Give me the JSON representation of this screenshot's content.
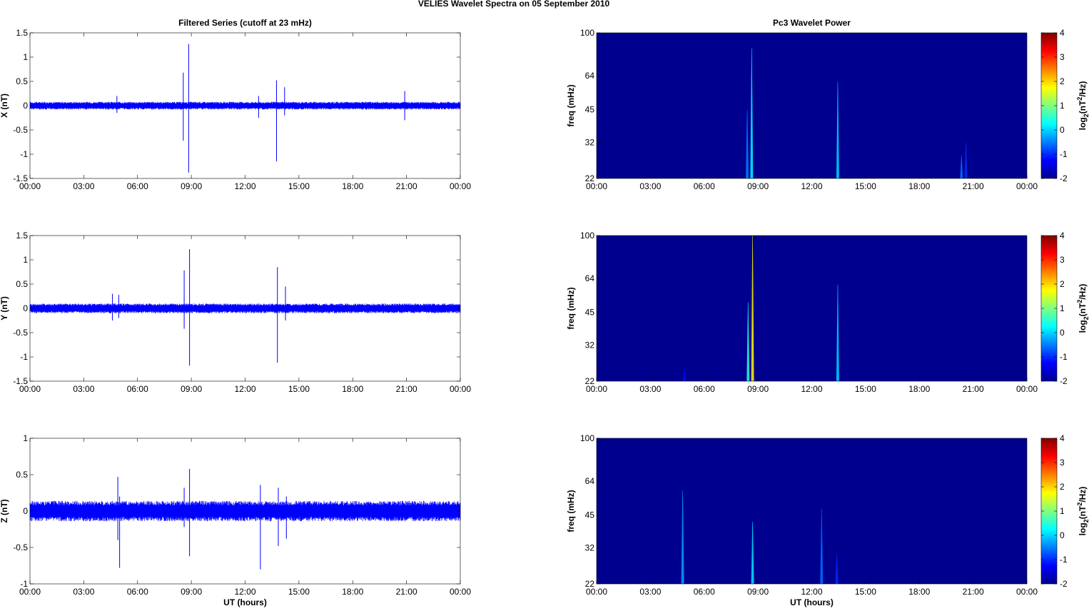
{
  "figure_title": "VELIES Wavelet Spectra on 05 September 2010",
  "colors": {
    "trace": "#0000ff",
    "background": "#ffffff",
    "spectrum_background": "#00008f",
    "colormap": "jet"
  },
  "chart_data": [
    {
      "type": "line",
      "panel": "x-filtered",
      "title": "Filtered Series (cutoff at 23 mHz)",
      "xlabel": "",
      "ylabel": "X (nT)",
      "xticks": [
        "00:00",
        "03:00",
        "06:00",
        "09:00",
        "12:00",
        "15:00",
        "18:00",
        "21:00",
        "00:00"
      ],
      "xlim_hours": [
        0,
        24
      ],
      "ylim": [
        -1.5,
        1.5
      ],
      "yticks": [
        -1.5,
        -1,
        -0.5,
        0,
        0.5,
        1,
        1.5
      ],
      "noise_amplitude": 0.08,
      "spikes": [
        {
          "t": 4.85,
          "max": 0.2,
          "min": -0.15
        },
        {
          "t": 8.55,
          "max": 0.68,
          "min": -0.72
        },
        {
          "t": 8.85,
          "max": 1.27,
          "min": -1.38
        },
        {
          "t": 12.75,
          "max": 0.2,
          "min": -0.25
        },
        {
          "t": 13.75,
          "max": 0.52,
          "min": -1.15
        },
        {
          "t": 14.2,
          "max": 0.38,
          "min": -0.2
        },
        {
          "t": 20.9,
          "max": 0.3,
          "min": -0.3
        }
      ],
      "grid": false
    },
    {
      "type": "line",
      "panel": "y-filtered",
      "title": "",
      "xlabel": "",
      "ylabel": "Y (nT)",
      "xticks": [
        "00:00",
        "03:00",
        "06:00",
        "09:00",
        "12:00",
        "15:00",
        "18:00",
        "21:00",
        "00:00"
      ],
      "xlim_hours": [
        0,
        24
      ],
      "ylim": [
        -1.5,
        1.5
      ],
      "yticks": [
        -1.5,
        -1,
        -0.5,
        0,
        0.5,
        1,
        1.5
      ],
      "noise_amplitude": 0.1,
      "spikes": [
        {
          "t": 4.6,
          "max": 0.3,
          "min": -0.25
        },
        {
          "t": 4.95,
          "max": 0.28,
          "min": -0.2
        },
        {
          "t": 8.6,
          "max": 0.78,
          "min": -0.42
        },
        {
          "t": 8.9,
          "max": 1.22,
          "min": -1.18
        },
        {
          "t": 13.8,
          "max": 0.85,
          "min": -1.12
        },
        {
          "t": 14.25,
          "max": 0.45,
          "min": -0.25
        }
      ],
      "grid": false
    },
    {
      "type": "line",
      "panel": "z-filtered",
      "title": "",
      "xlabel": "UT (hours)",
      "ylabel": "Z (nT)",
      "xticks": [
        "00:00",
        "03:00",
        "06:00",
        "09:00",
        "12:00",
        "15:00",
        "18:00",
        "21:00",
        "00:00"
      ],
      "xlim_hours": [
        0,
        24
      ],
      "ylim": [
        -1,
        1
      ],
      "yticks": [
        -1,
        -0.5,
        0,
        0.5,
        1
      ],
      "noise_amplitude": 0.14,
      "spikes": [
        {
          "t": 4.9,
          "max": 0.47,
          "min": -0.4
        },
        {
          "t": 5.0,
          "max": 0.2,
          "min": -0.78
        },
        {
          "t": 8.6,
          "max": 0.32,
          "min": -0.22
        },
        {
          "t": 8.9,
          "max": 0.58,
          "min": -0.62
        },
        {
          "t": 12.85,
          "max": 0.36,
          "min": -0.8
        },
        {
          "t": 13.85,
          "max": 0.32,
          "min": -0.48
        },
        {
          "t": 14.3,
          "max": 0.2,
          "min": -0.38
        }
      ],
      "grid": false
    },
    {
      "type": "heatmap",
      "panel": "x-wavelet",
      "title": "Pc3 Wavelet Power",
      "xlabel": "",
      "ylabel": "freq (mHz)",
      "colorbar_label": "log2(nT2/Hz)",
      "colorbar_ticks": [
        -2,
        -1,
        0,
        1,
        2,
        3,
        4
      ],
      "clim": [
        -2,
        4
      ],
      "background_value": -2,
      "xticks": [
        "00:00",
        "03:00",
        "06:00",
        "09:00",
        "12:00",
        "15:00",
        "18:00",
        "21:00",
        "00:00"
      ],
      "yticks": [
        22,
        32,
        45,
        64,
        100
      ],
      "ylim_mhz": [
        22,
        100
      ],
      "y_scale": "log",
      "events": [
        {
          "t": 8.4,
          "fmax": 45,
          "value": -0.5
        },
        {
          "t": 8.65,
          "fmax": 85,
          "value": 0.2
        },
        {
          "t": 13.45,
          "fmax": 60,
          "value": 0.0
        },
        {
          "t": 20.35,
          "fmax": 28,
          "value": -0.6
        },
        {
          "t": 20.6,
          "fmax": 32,
          "value": -1.0
        }
      ]
    },
    {
      "type": "heatmap",
      "panel": "y-wavelet",
      "title": "",
      "xlabel": "",
      "ylabel": "freq (mHz)",
      "colorbar_label": "log2(nT2/Hz)",
      "colorbar_ticks": [
        -2,
        -1,
        0,
        1,
        2,
        3,
        4
      ],
      "clim": [
        -2,
        4
      ],
      "background_value": -2,
      "xticks": [
        "00:00",
        "03:00",
        "06:00",
        "09:00",
        "12:00",
        "15:00",
        "18:00",
        "21:00",
        "00:00"
      ],
      "yticks": [
        22,
        32,
        45,
        64,
        100
      ],
      "ylim_mhz": [
        22,
        100
      ],
      "y_scale": "log",
      "events": [
        {
          "t": 4.9,
          "fmax": 25,
          "value": -1.2
        },
        {
          "t": 8.45,
          "fmax": 50,
          "value": 0.5
        },
        {
          "t": 8.7,
          "fmax": 100,
          "value": 1.8
        },
        {
          "t": 13.45,
          "fmax": 60,
          "value": 0.0
        }
      ]
    },
    {
      "type": "heatmap",
      "panel": "z-wavelet",
      "title": "",
      "xlabel": "UT (hours)",
      "ylabel": "freq (mHz)",
      "colorbar_label": "log2(nT2/Hz)",
      "colorbar_ticks": [
        -2,
        -1,
        0,
        1,
        2,
        3,
        4
      ],
      "clim": [
        -2,
        4
      ],
      "background_value": -2,
      "xticks": [
        "00:00",
        "03:00",
        "06:00",
        "09:00",
        "12:00",
        "15:00",
        "18:00",
        "21:00",
        "00:00"
      ],
      "yticks": [
        22,
        32,
        45,
        64,
        100
      ],
      "ylim_mhz": [
        22,
        100
      ],
      "y_scale": "log",
      "events": [
        {
          "t": 4.8,
          "fmax": 58,
          "value": -0.3
        },
        {
          "t": 8.7,
          "fmax": 42,
          "value": 0.1
        },
        {
          "t": 12.55,
          "fmax": 48,
          "value": -0.6
        },
        {
          "t": 13.4,
          "fmax": 30,
          "value": -1.0
        }
      ]
    }
  ]
}
